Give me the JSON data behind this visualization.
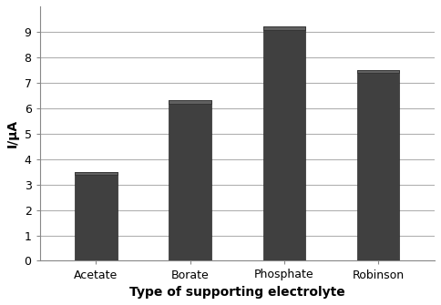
{
  "categories": [
    "Acetate",
    "Borate",
    "Phosphate",
    "Robinson"
  ],
  "values": [
    3.5,
    6.3,
    9.2,
    7.5
  ],
  "bar_color": "#404040",
  "bar_top_color": "#606060",
  "bar_edge_color": "#2a2a2a",
  "xlabel": "Type of supporting electrolyte",
  "ylabel": "I/μA",
  "ylim": [
    0,
    10
  ],
  "yticks": [
    0,
    1,
    2,
    3,
    4,
    5,
    6,
    7,
    8,
    9
  ],
  "grid_color": "#b0b0b0",
  "background_color": "#ffffff",
  "xlabel_fontsize": 10,
  "ylabel_fontsize": 10,
  "tick_fontsize": 9,
  "bar_width": 0.45
}
